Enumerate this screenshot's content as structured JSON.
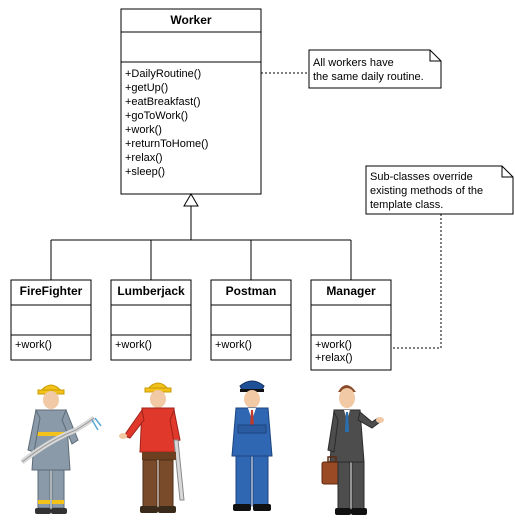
{
  "worker": {
    "name": "Worker",
    "methods": [
      "+DailyRoutine()",
      "+getUp()",
      "+eatBreakfast()",
      "+goToWork()",
      "+work()",
      "+returnToHome()",
      "+relax()",
      "+sleep()"
    ]
  },
  "subclasses": [
    {
      "name": "FireFighter",
      "methods": [
        "+work()"
      ],
      "figure": "firefighter"
    },
    {
      "name": "Lumberjack",
      "methods": [
        "+work()"
      ],
      "figure": "lumberjack"
    },
    {
      "name": "Postman",
      "methods": [
        "+work()"
      ],
      "figure": "postman"
    },
    {
      "name": "Manager",
      "methods": [
        "+work()",
        "+relax()"
      ],
      "figure": "manager"
    }
  ],
  "notes": {
    "routine": [
      "All workers have",
      "the same daily routine."
    ],
    "override": [
      "Sub-classes override",
      "existing methods of the",
      "template class."
    ]
  },
  "colors": {
    "firefighter_suit": "#8a9aa8",
    "helmet": "#f2c21b",
    "lumberjack_shirt": "#e0392b",
    "postman_suit": "#2f67b2",
    "manager_suit": "#4d4d4d",
    "briefcase": "#9a4a24"
  }
}
